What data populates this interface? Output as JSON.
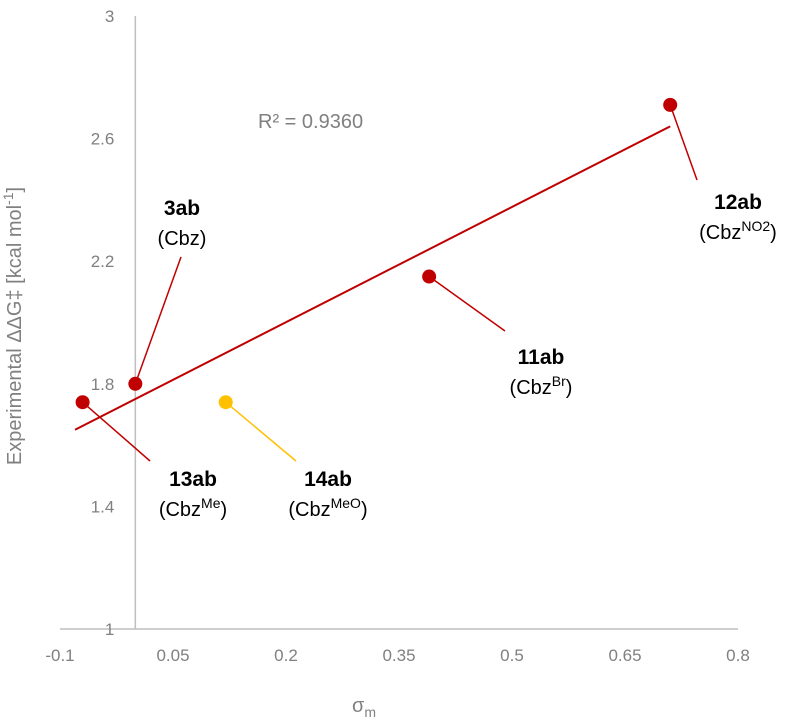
{
  "chart_data": {
    "type": "scatter",
    "title": "",
    "xlabel": {
      "base": "σ",
      "sub": "m"
    },
    "ylabel": {
      "base": "Experimental ΔΔG‡  [kcal mol",
      "sup": "-1",
      "tail": "]"
    },
    "xlim": [
      -0.1,
      0.8
    ],
    "ylim": [
      1,
      3
    ],
    "x_ticks": [
      "-0.1",
      "0.05",
      "0.2",
      "0.35",
      "0.5",
      "0.65",
      "0.8"
    ],
    "y_ticks": [
      "1",
      "1.4",
      "1.8",
      "2.2",
      "2.6",
      "3"
    ],
    "grid": false,
    "legend": "none",
    "r_squared_label": "R² = 0.9360",
    "trendline": {
      "x": [
        -0.08,
        0.71
      ],
      "y": [
        1.65,
        2.64
      ],
      "color": "#c00000"
    },
    "points": [
      {
        "name": "3ab",
        "group": "Cbz",
        "sup": "",
        "x": 0.0,
        "y": 1.8,
        "color": "#c00000"
      },
      {
        "name": "13ab",
        "group": "Cbz",
        "sup": "Me",
        "x": -0.07,
        "y": 1.74,
        "color": "#c00000"
      },
      {
        "name": "14ab",
        "group": "Cbz",
        "sup": "MeO",
        "x": 0.12,
        "y": 1.74,
        "color": "#ffc000"
      },
      {
        "name": "11ab",
        "group": "Cbz",
        "sup": "Br",
        "x": 0.39,
        "y": 2.15,
        "color": "#c00000"
      },
      {
        "name": "12ab",
        "group": "Cbz",
        "sup": "NO2",
        "x": 0.71,
        "y": 2.71,
        "color": "#c00000"
      }
    ]
  }
}
